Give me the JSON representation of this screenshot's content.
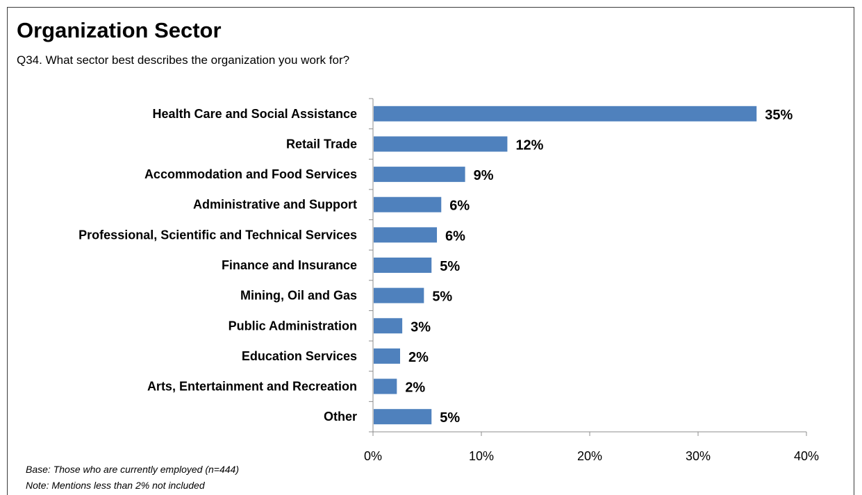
{
  "title": "Organization Sector",
  "subtitle": "Q34. What sector best describes the organization you work for?",
  "footnotes": {
    "base": "Base: Those who are currently employed (n=444)",
    "note": "Note: Mentions less than 2% not included"
  },
  "colors": {
    "bar": "#4f81bd",
    "axis": "#8c8c8c"
  },
  "chart_data": {
    "type": "bar",
    "orientation": "horizontal",
    "categories": [
      "Health Care and Social Assistance",
      "Retail Trade",
      "Accommodation and Food Services",
      "Administrative and Support",
      "Professional, Scientific and Technical Services",
      "Finance and Insurance",
      "Mining, Oil and Gas",
      "Public Administration",
      "Education Services",
      "Arts, Entertainment and Recreation",
      "Other"
    ],
    "values": [
      35.4,
      12.4,
      8.5,
      6.3,
      5.9,
      5.4,
      4.7,
      2.7,
      2.5,
      2.2,
      5.4
    ],
    "value_labels": [
      "35%",
      "12%",
      "9%",
      "6%",
      "6%",
      "5%",
      "5%",
      "3%",
      "2%",
      "2%",
      "5%"
    ],
    "xlim": [
      0,
      40
    ],
    "xticks": [
      0,
      10,
      20,
      30,
      40
    ],
    "xtick_labels": [
      "0%",
      "10%",
      "20%",
      "30%",
      "40%"
    ],
    "grid": false,
    "legend": "none"
  }
}
